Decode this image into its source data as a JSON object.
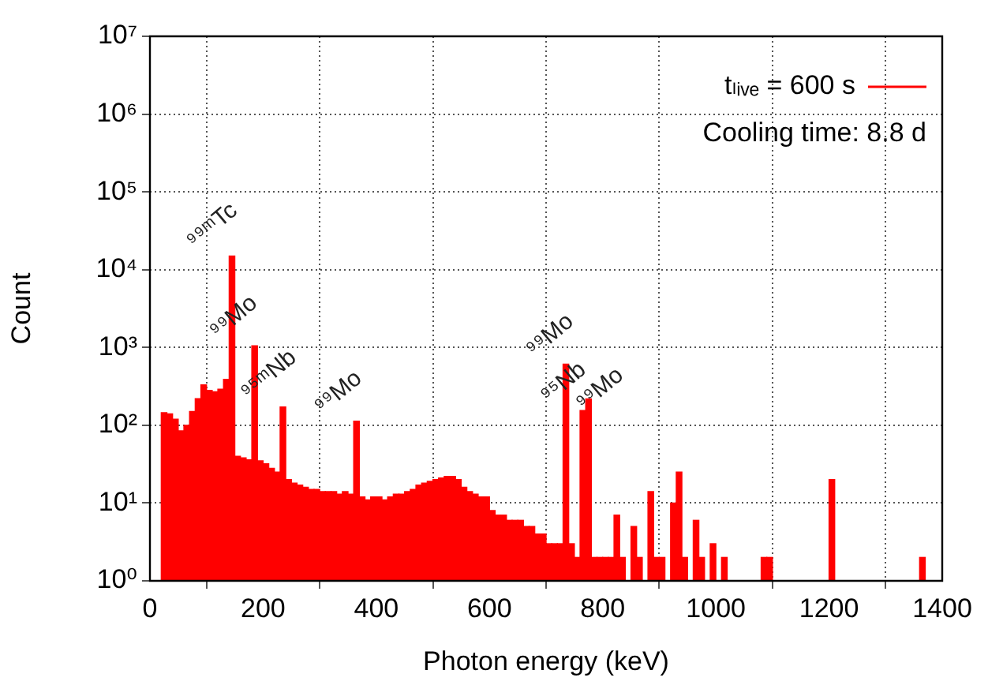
{
  "chart_data": {
    "type": "histogram",
    "xlabel": "Photon energy (keV)",
    "ylabel": "Count",
    "bins": [
      0,
      10,
      20,
      30,
      40,
      50,
      60,
      70,
      80,
      90,
      100,
      110,
      120,
      130,
      140,
      150,
      160,
      170,
      180,
      190,
      200,
      210,
      220,
      230,
      240,
      250,
      260,
      270,
      280,
      290,
      300,
      310,
      320,
      330,
      340,
      350,
      360,
      370,
      380,
      390,
      400,
      410,
      420,
      430,
      440,
      450,
      460,
      470,
      480,
      490,
      500,
      510,
      520,
      530,
      540,
      550,
      560,
      570,
      580,
      590,
      600,
      610,
      620,
      630,
      640,
      650,
      660,
      670,
      680,
      690,
      700,
      710,
      720,
      730,
      740,
      750,
      760,
      770,
      780,
      790,
      800,
      810,
      820,
      830,
      840,
      850,
      860,
      870,
      880,
      890,
      900,
      910,
      920,
      930,
      940,
      950,
      960,
      970,
      980,
      990,
      1000,
      1010,
      1020,
      1030,
      1040,
      1050,
      1060,
      1070,
      1080,
      1090,
      1100,
      1110,
      1120,
      1130,
      1140,
      1150,
      1160,
      1170,
      1180,
      1190,
      1200,
      1210,
      1220,
      1230,
      1240,
      1250,
      1260,
      1270,
      1280,
      1290,
      1300,
      1310,
      1320,
      1330,
      1340,
      1350,
      1360,
      1370,
      1380,
      1390,
      1400
    ],
    "series": [
      {
        "name": "tₗᵢᵥₑ = 600 s",
        "color": "#ff0000",
        "values": [
          null,
          null,
          145,
          140,
          120,
          85,
          100,
          150,
          220,
          330,
          280,
          270,
          290,
          390,
          15000,
          40,
          38,
          36,
          1050,
          35,
          32,
          28,
          25,
          172,
          20,
          18,
          17,
          16,
          15,
          15,
          14,
          14,
          14,
          13,
          14,
          13,
          113,
          12,
          11,
          12,
          12,
          11,
          12,
          13,
          13,
          14,
          15,
          17,
          18,
          19,
          20,
          21,
          22,
          22,
          20,
          16,
          14,
          13,
          12,
          12,
          8,
          7,
          7,
          6,
          6,
          6,
          5,
          5,
          4,
          4,
          3,
          3,
          3,
          610,
          3,
          2,
          155,
          218,
          2,
          2,
          2,
          2,
          7,
          2,
          null,
          5,
          2,
          null,
          14,
          2,
          2,
          null,
          10,
          25,
          2,
          null,
          6,
          2,
          null,
          3,
          null,
          2,
          null,
          null,
          null,
          null,
          null,
          null,
          2,
          2,
          null,
          null,
          null,
          null,
          null,
          null,
          null,
          null,
          null,
          null,
          20,
          null,
          null,
          null,
          null,
          null,
          null,
          null,
          null,
          null,
          null,
          null,
          null,
          null,
          null,
          null,
          2,
          null,
          null,
          null
        ]
      }
    ],
    "xlim": [
      0,
      1400
    ],
    "xticks": [
      0,
      200,
      400,
      600,
      800,
      1000,
      1200,
      1400
    ],
    "ylim": [
      1,
      10000000
    ],
    "yticks": [
      {
        "value": 1,
        "label": "10⁰"
      },
      {
        "value": 10,
        "label": "10¹"
      },
      {
        "value": 100,
        "label": "10²"
      },
      {
        "value": 1000,
        "label": "10³"
      },
      {
        "value": 10000,
        "label": "10⁴"
      },
      {
        "value": 100000,
        "label": "10⁵"
      },
      {
        "value": 1000000,
        "label": "10⁶"
      },
      {
        "value": 10000000,
        "label": "10⁷"
      }
    ],
    "log": "y",
    "grid": true,
    "legend": "top right",
    "annotations": [
      {
        "text": "⁹⁹ᵐTc",
        "x": 140,
        "y": 15000
      },
      {
        "text": "⁹⁹Mo",
        "x": 181,
        "y": 1050
      },
      {
        "text": "⁹⁵ᵐNb",
        "x": 236,
        "y": 172
      },
      {
        "text": "⁹⁹Mo",
        "x": 366,
        "y": 113
      },
      {
        "text": "⁹⁹Mo",
        "x": 740,
        "y": 610
      },
      {
        "text": "⁹⁵Nb",
        "x": 766,
        "y": 155
      },
      {
        "text": "⁹⁹Mo",
        "x": 778,
        "y": 218
      },
      "Cooling time: 8.8 d"
    ]
  }
}
